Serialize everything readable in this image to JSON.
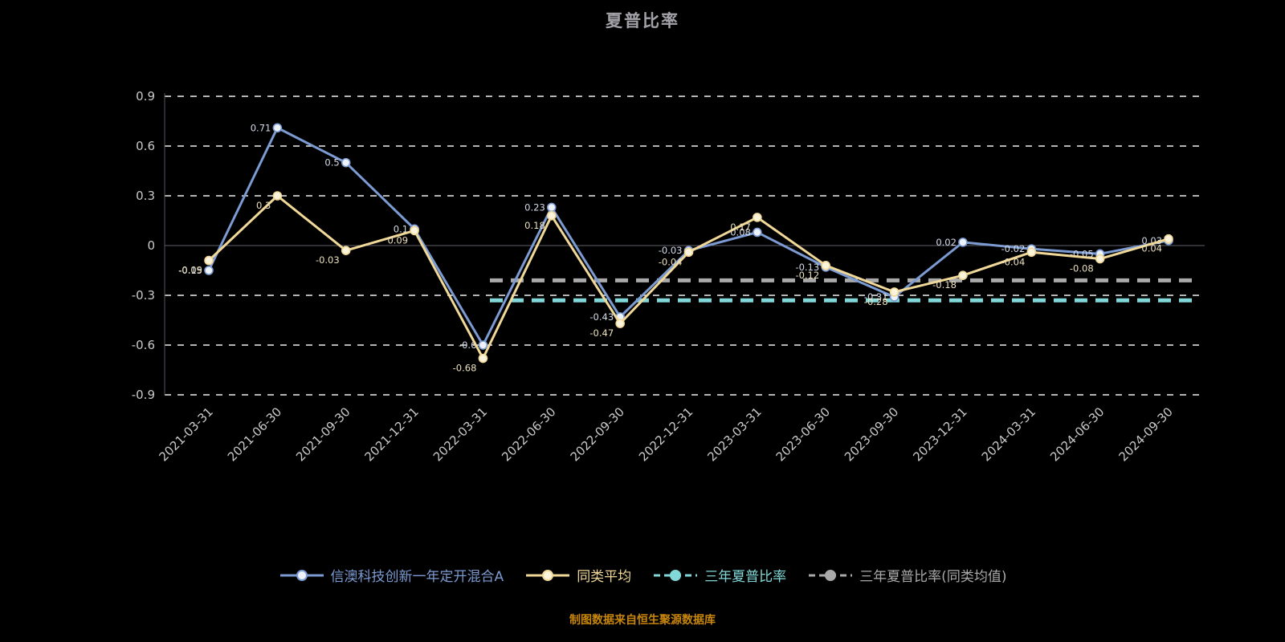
{
  "title": "夏普比率",
  "footer": "制图数据来自恒生聚源数据库",
  "colors": {
    "background": "#000000",
    "grid_line": "#efefef",
    "zero_line": "#5f5f6a",
    "axis_line": "#55555f",
    "tick_label": "#c9c9c9",
    "title_text": "#a2a2a8",
    "footer_text": "#c8860c"
  },
  "chart_data": {
    "type": "line",
    "title": "夏普比率",
    "xlabel": "",
    "ylabel": "",
    "ylim": [
      -0.9,
      0.9
    ],
    "yticks": [
      0.9,
      0.6,
      0.3,
      0,
      -0.3,
      -0.6,
      -0.9
    ],
    "grid": true,
    "legend_position": "bottom",
    "x": [
      "2021-03-31",
      "2021-06-30",
      "2021-09-30",
      "2021-12-31",
      "2022-03-31",
      "2022-06-30",
      "2022-09-30",
      "2022-12-31",
      "2023-03-31",
      "2023-06-30",
      "2023-09-30",
      "2023-12-31",
      "2024-03-31",
      "2024-06-30",
      "2024-09-30"
    ],
    "series": [
      {
        "name": "信澳科技创新一年定开混合A",
        "type": "line",
        "color": "#7b9bd2",
        "marker_fill": "#eef2fa",
        "label_color": "#d4dcea",
        "values": [
          -0.15,
          0.71,
          0.5,
          0.1,
          -0.6,
          0.23,
          -0.43,
          -0.03,
          0.08,
          -0.13,
          -0.31,
          0.02,
          -0.02,
          -0.05,
          0.03
        ]
      },
      {
        "name": "同类平均",
        "type": "line",
        "color": "#f0d898",
        "marker_fill": "#fbf4dd",
        "label_color": "#ece0bc",
        "values": [
          -0.09,
          0.3,
          -0.03,
          0.09,
          -0.68,
          0.18,
          -0.47,
          -0.04,
          0.17,
          -0.12,
          -0.28,
          -0.18,
          -0.04,
          -0.08,
          0.04
        ]
      },
      {
        "name": "三年夏普比率",
        "type": "hline",
        "color": "#82d8d8",
        "value": -0.33,
        "x_start_index": 4.1
      },
      {
        "name": "三年夏普比率(同类均值)",
        "type": "hline",
        "color": "#a9a9a9",
        "value": -0.21,
        "x_start_index": 4.1
      }
    ]
  }
}
